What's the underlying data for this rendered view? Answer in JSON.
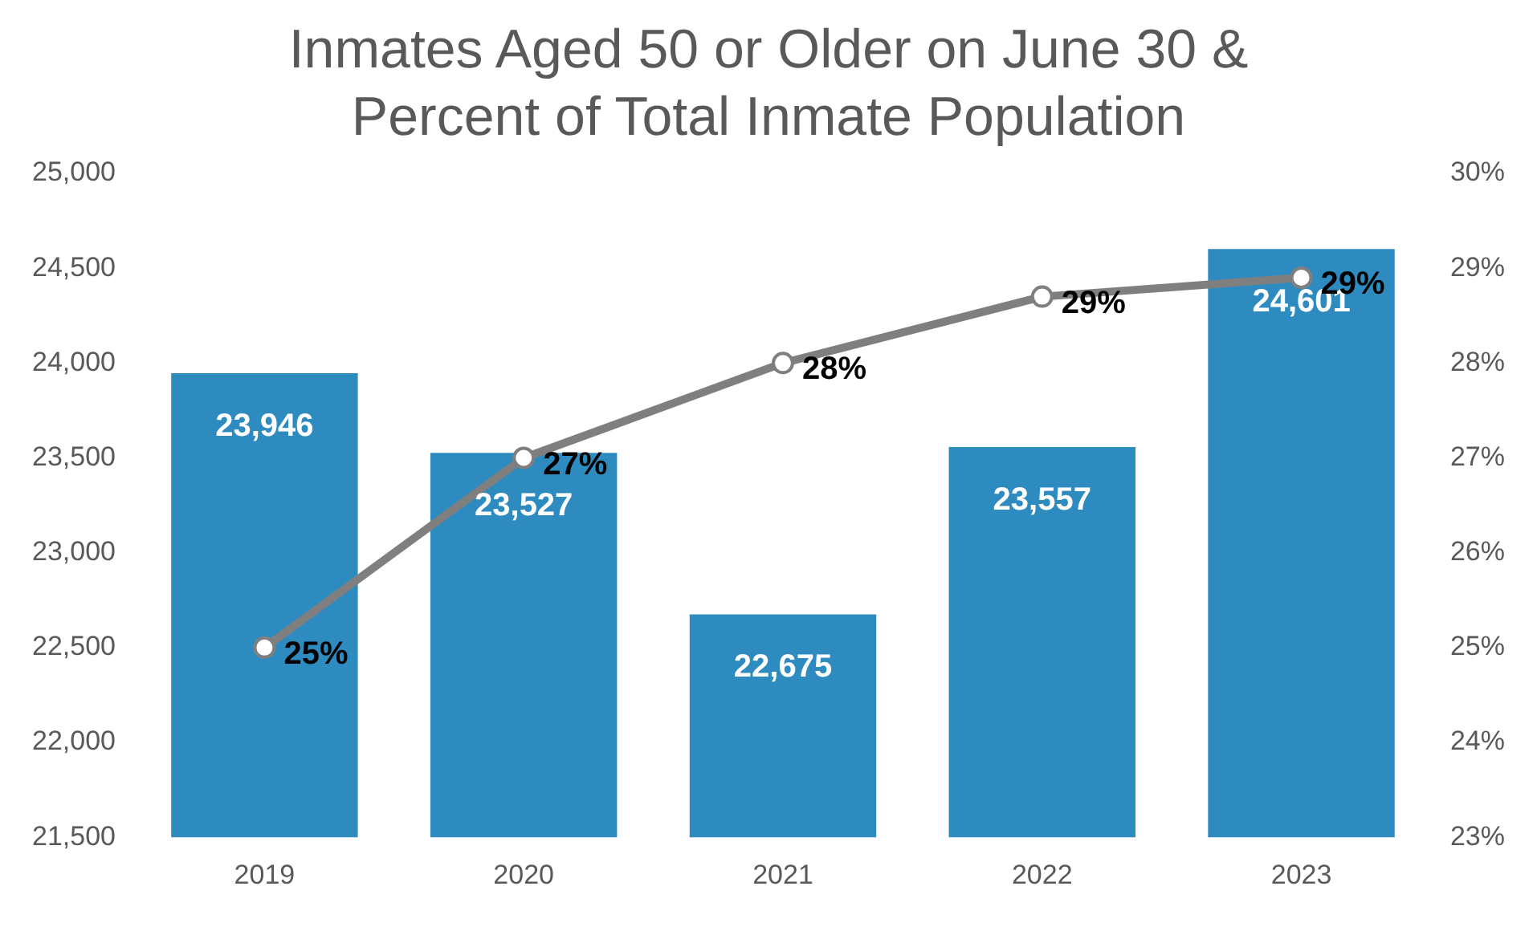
{
  "chart_data": {
    "type": "bar",
    "title": [
      "Inmates Aged 50 or Older on June 30 &",
      "Percent of Total Inmate Population"
    ],
    "categories": [
      "2019",
      "2020",
      "2021",
      "2022",
      "2023"
    ],
    "series": [
      {
        "type": "bar",
        "color": "#2e8bc0",
        "values": [
          23946,
          23527,
          22675,
          23557,
          24601
        ],
        "value_labels": [
          "23,946",
          "23,527",
          "22,675",
          "23,557",
          "24,601"
        ]
      },
      {
        "type": "line",
        "axis": "y2",
        "color": "#7f7f7f",
        "marker": "circle",
        "line_style": "solid",
        "values": [
          25,
          27,
          28,
          28.7,
          28.9
        ],
        "value_labels": [
          "25%",
          "27%",
          "28%",
          "29%",
          "29%"
        ]
      }
    ],
    "ylim": [
      21500,
      25000
    ],
    "yticks": [
      {
        "value": 21500,
        "label": "21,500"
      },
      {
        "value": 22000,
        "label": "22,000"
      },
      {
        "value": 22500,
        "label": "22,500"
      },
      {
        "value": 23000,
        "label": "23,000"
      },
      {
        "value": 23500,
        "label": "23,500"
      },
      {
        "value": 24000,
        "label": "24,000"
      },
      {
        "value": 24500,
        "label": "24,500"
      },
      {
        "value": 25000,
        "label": "25,000"
      }
    ],
    "y2lim": [
      23,
      30
    ],
    "y2ticks": [
      {
        "value": 23,
        "label": "23%"
      },
      {
        "value": 24,
        "label": "24%"
      },
      {
        "value": 25,
        "label": "25%"
      },
      {
        "value": 26,
        "label": "26%"
      },
      {
        "value": 27,
        "label": "27%"
      },
      {
        "value": 28,
        "label": "28%"
      },
      {
        "value": 29,
        "label": "29%"
      },
      {
        "value": 30,
        "label": "30%"
      }
    ],
    "grid": false,
    "legend": false
  }
}
